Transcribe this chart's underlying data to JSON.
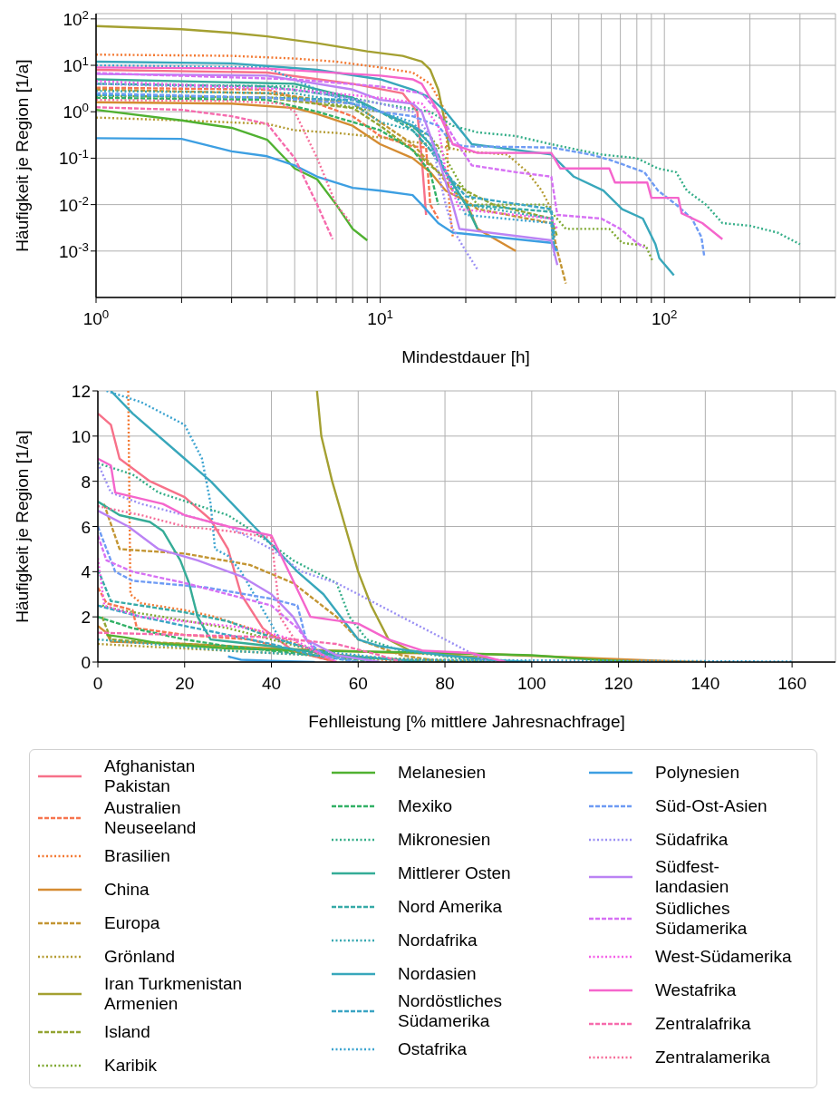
{
  "chart_data": [
    {
      "type": "line",
      "xlabel": "Mindestdauer [h]",
      "ylabel": "Häufigkeit je Region [1/a]",
      "log": "xy",
      "grid": true,
      "legend": false,
      "xlim": [
        1,
        400
      ],
      "ylim": [
        0.0001,
        130
      ],
      "xticks": [
        {
          "value": 1,
          "label": "10$^{0}$"
        },
        {
          "value": 2,
          "label": null
        },
        {
          "value": 3,
          "label": null
        },
        {
          "value": 4,
          "label": null
        },
        {
          "value": 5,
          "label": null
        },
        {
          "value": 6,
          "label": null
        },
        {
          "value": 7,
          "label": null
        },
        {
          "value": 8,
          "label": null
        },
        {
          "value": 9,
          "label": null
        },
        {
          "value": 10,
          "label": "10$^{1}$"
        },
        {
          "value": 20,
          "label": null
        },
        {
          "value": 30,
          "label": null
        },
        {
          "value": 40,
          "label": null
        },
        {
          "value": 50,
          "label": null
        },
        {
          "value": 60,
          "label": null
        },
        {
          "value": 70,
          "label": null
        },
        {
          "value": 80,
          "label": null
        },
        {
          "value": 90,
          "label": null
        },
        {
          "value": 100,
          "label": "10$^{2}$"
        },
        {
          "value": 200,
          "label": null
        },
        {
          "value": 300,
          "label": null
        }
      ],
      "yticks": [
        {
          "value": 0.001,
          "label": "10$^{-3}$"
        },
        {
          "value": 0.01,
          "label": "10$^{-2}$"
        },
        {
          "value": 0.1,
          "label": "10$^{-1}$"
        },
        {
          "value": 1,
          "label": "10$^{0}$"
        },
        {
          "value": 10,
          "label": "10$^{1}$"
        },
        {
          "value": 100,
          "label": "10$^{2}$"
        }
      ],
      "series": [
        {
          "color": "#f77189",
          "line_style": "solid",
          "x": [
            1,
            4,
            8,
            12,
            13.5,
            14,
            14.5
          ],
          "values": [
            8,
            7,
            4,
            2.5,
            1,
            0.1,
            0.006
          ]
        },
        {
          "color": "#f7754f",
          "line_style": "dashed",
          "x": [
            1,
            4,
            6,
            8,
            10,
            13,
            14.5,
            15,
            16
          ],
          "values": [
            3.3,
            3,
            1.5,
            0.8,
            0.3,
            0.18,
            0.17,
            0.01,
            0.005
          ]
        },
        {
          "color": "#f37932",
          "line_style": "dotted",
          "x": [
            1,
            3,
            5,
            7,
            10,
            13,
            15,
            17,
            17.5,
            18
          ],
          "values": [
            17,
            16,
            14,
            12,
            9,
            7,
            4,
            1,
            0.01,
            0.002
          ]
        },
        {
          "color": "#d58c32",
          "line_style": "solid",
          "x": [
            1,
            3,
            5,
            6,
            8,
            10,
            13,
            15,
            17,
            20,
            22,
            30
          ],
          "values": [
            1.6,
            1.5,
            1.2,
            0.9,
            0.5,
            0.2,
            0.1,
            0.05,
            0.02,
            0.012,
            0.003,
            0.001
          ]
        },
        {
          "color": "#c39532",
          "line_style": "dashed",
          "x": [
            1,
            4,
            8,
            10,
            13,
            16,
            18,
            22,
            40,
            42,
            45
          ],
          "values": [
            3,
            2.5,
            1.5,
            0.6,
            0.2,
            0.05,
            0.02,
            0.008,
            0.004,
            0.001,
            0.0002
          ]
        },
        {
          "color": "#b49b32",
          "line_style": "dotted",
          "x": [
            1,
            2,
            4,
            5,
            7,
            10,
            15,
            20,
            28,
            33,
            37,
            40
          ],
          "values": [
            0.75,
            0.65,
            0.55,
            0.4,
            0.35,
            0.28,
            0.2,
            0.14,
            0.12,
            0.05,
            0.02,
            0.008
          ]
        },
        {
          "color": "#a4a031",
          "line_style": "solid",
          "x": [
            1,
            2,
            3,
            4,
            6,
            9,
            12,
            14,
            15,
            16,
            17,
            17.5
          ],
          "values": [
            70,
            60,
            50,
            42,
            30,
            20,
            16,
            12,
            8,
            3,
            0.5,
            0.15
          ]
        },
        {
          "color": "#93a431",
          "line_style": "dashed",
          "x": [
            1,
            4,
            8,
            10,
            13,
            16,
            20,
            25,
            40,
            42
          ],
          "values": [
            2.3,
            2,
            1.2,
            0.5,
            0.15,
            0.05,
            0.02,
            0.01,
            0.005,
            0.002
          ]
        },
        {
          "color": "#7fa831",
          "line_style": "dotted",
          "x": [
            1,
            5,
            10,
            15,
            17,
            19,
            22,
            38,
            45,
            64,
            71,
            86,
            91
          ],
          "values": [
            2.2,
            2,
            1,
            0.3,
            0.1,
            0.03,
            0.01,
            0.01,
            0.003,
            0.003,
            0.0015,
            0.0013,
            0.0006
          ]
        },
        {
          "color": "#50b131",
          "line_style": "solid",
          "x": [
            1,
            2,
            3,
            4,
            5,
            6,
            7,
            8,
            9
          ],
          "values": [
            1.1,
            0.65,
            0.45,
            0.25,
            0.06,
            0.035,
            0.01,
            0.003,
            0.0017
          ]
        },
        {
          "color": "#32b166",
          "line_style": "dashed",
          "x": [
            1,
            4,
            6,
            8,
            10,
            13,
            15,
            16
          ],
          "values": [
            2,
            1.8,
            1,
            0.6,
            0.4,
            0.15,
            0.05,
            0.01
          ]
        },
        {
          "color": "#34ae88",
          "line_style": "dotted",
          "x": [
            1,
            5,
            10,
            15,
            18,
            22,
            30,
            40,
            50,
            60,
            80,
            95,
            110,
            120,
            140,
            160,
            200,
            250,
            300
          ],
          "values": [
            4,
            3.5,
            1.5,
            1,
            0.5,
            0.36,
            0.3,
            0.2,
            0.15,
            0.12,
            0.1,
            0.06,
            0.05,
            0.02,
            0.01,
            0.004,
            0.0035,
            0.0025,
            0.0014
          ]
        },
        {
          "color": "#35ac97",
          "line_style": "solid",
          "x": [
            1,
            5,
            8,
            10,
            13,
            15,
            17,
            20,
            22
          ],
          "values": [
            5,
            4,
            2,
            1,
            0.5,
            0.2,
            0.05,
            0.01,
            0.003
          ]
        },
        {
          "color": "#36aaa7",
          "line_style": "dashed",
          "x": [
            1,
            4,
            8,
            10,
            13,
            15,
            17,
            20,
            40,
            41
          ],
          "values": [
            4,
            3.5,
            2,
            1,
            0.4,
            0.15,
            0.05,
            0.01,
            0.007,
            0.001
          ]
        },
        {
          "color": "#37a8b1",
          "line_style": "dotted",
          "x": [
            1,
            5,
            8,
            10,
            13,
            16,
            20,
            40,
            41
          ],
          "values": [
            2.8,
            2.5,
            1.5,
            0.6,
            0.4,
            0.1,
            0.01,
            0.005,
            0.0008
          ]
        },
        {
          "color": "#38a7bb",
          "line_style": "solid",
          "x": [
            1,
            3,
            6,
            10,
            13,
            15,
            17,
            21,
            40,
            48,
            61,
            71,
            84,
            93,
            96,
            108
          ],
          "values": [
            12,
            11,
            8,
            5,
            3,
            2,
            1,
            0.2,
            0.12,
            0.04,
            0.02,
            0.008,
            0.005,
            0.0014,
            0.0007,
            0.0003
          ]
        },
        {
          "color": "#3aa5c4",
          "line_style": "dashed",
          "x": [
            1,
            4,
            8,
            10,
            13,
            15,
            17,
            20,
            40,
            41
          ],
          "values": [
            2.3,
            2,
            1.8,
            1,
            0.5,
            0.3,
            0.05,
            0.015,
            0.008,
            0.002
          ]
        },
        {
          "color": "#3ba3d0",
          "line_style": "dotted",
          "x": [
            1,
            4,
            6,
            8,
            10,
            13,
            15,
            17,
            20,
            40,
            41
          ],
          "values": [
            10,
            9,
            3,
            1.5,
            1,
            0.6,
            0.2,
            0.05,
            0.006,
            0.004,
            0.001
          ]
        },
        {
          "color": "#3d9fe2",
          "line_style": "solid",
          "x": [
            1,
            2,
            3,
            4,
            5,
            6,
            8,
            10,
            13,
            14,
            16,
            18,
            40,
            42
          ],
          "values": [
            0.27,
            0.26,
            0.14,
            0.11,
            0.07,
            0.04,
            0.023,
            0.02,
            0.016,
            0.01,
            0.004,
            0.0025,
            0.0015,
            0.001
          ]
        },
        {
          "color": "#6e9bf4",
          "line_style": "dashed",
          "x": [
            1,
            4,
            8,
            10,
            13,
            16,
            18,
            20,
            40,
            55,
            65,
            85,
            95,
            110,
            125,
            135,
            138
          ],
          "values": [
            2.5,
            2,
            1.5,
            1,
            0.8,
            0.5,
            0.2,
            0.18,
            0.17,
            0.12,
            0.09,
            0.05,
            0.02,
            0.01,
            0.005,
            0.002,
            0.0008
          ]
        },
        {
          "color": "#9b90f4",
          "line_style": "dotted",
          "x": [
            1,
            5,
            10,
            13,
            15,
            17,
            18,
            20,
            22
          ],
          "values": [
            4,
            3,
            1.5,
            1,
            0.3,
            0.01,
            0.003,
            0.001,
            0.0004
          ]
        },
        {
          "color": "#bb83f4",
          "line_style": "solid",
          "x": [
            1,
            4,
            8,
            10,
            13,
            14,
            16,
            18,
            19,
            40,
            42
          ],
          "values": [
            6.5,
            6,
            3,
            1.8,
            1.5,
            1,
            0.1,
            0.01,
            0.003,
            0.0017,
            0.0005
          ]
        },
        {
          "color": "#d670f4",
          "line_style": "dashed",
          "x": [
            1,
            5,
            10,
            14,
            16,
            18,
            21,
            30,
            40,
            42,
            60,
            70,
            80,
            85
          ],
          "values": [
            6.8,
            5,
            3.5,
            2.5,
            1,
            0.3,
            0.07,
            0.05,
            0.04,
            0.006,
            0.005,
            0.003,
            0.0015,
            0.0012
          ]
        },
        {
          "color": "#f45fe8",
          "line_style": "dotted",
          "x": [
            1,
            5,
            10,
            14,
            16,
            17,
            19,
            30,
            40,
            42
          ],
          "values": [
            4.6,
            3,
            2,
            1.5,
            0.5,
            0.05,
            0.008,
            0.006,
            0.005,
            0.003
          ]
        },
        {
          "color": "#f565cc",
          "line_style": "solid",
          "x": [
            1,
            4,
            10,
            13,
            14,
            16,
            18,
            22,
            40,
            43,
            64,
            67,
            87,
            90,
            112,
            115,
            136,
            160
          ],
          "values": [
            9,
            8.5,
            6,
            5,
            4,
            1,
            0.2,
            0.13,
            0.13,
            0.06,
            0.06,
            0.03,
            0.03,
            0.014,
            0.014,
            0.0065,
            0.004,
            0.0018
          ]
        },
        {
          "color": "#f66bad",
          "line_style": "dashed",
          "x": [
            1,
            2,
            3,
            4,
            5,
            6,
            6.8
          ],
          "values": [
            1.25,
            1.1,
            0.8,
            0.55,
            0.1,
            0.01,
            0.0018
          ]
        },
        {
          "color": "#f66f9a",
          "line_style": "dotted",
          "x": [
            1,
            3,
            4.5,
            5,
            6,
            7,
            7.9
          ],
          "values": [
            1.8,
            1.7,
            1.5,
            1,
            0.1,
            0.01,
            0.004
          ]
        }
      ]
    },
    {
      "type": "line",
      "xlabel": "Fehlleistung [% mittlere Jahresnachfrage]",
      "ylabel": "Häufigkeit je Region [1/a]",
      "grid": true,
      "legend": "bottom",
      "xlim": [
        0,
        170
      ],
      "ylim": [
        0,
        12
      ],
      "xticks": [
        0,
        20,
        40,
        60,
        80,
        100,
        120,
        140,
        160
      ],
      "yticks": [
        0,
        2,
        4,
        6,
        8,
        10,
        12
      ],
      "series": [
        {
          "name": "Afghanistan\nPakistan",
          "color": "#f77189",
          "line_style": "solid",
          "x": [
            0,
            3,
            5,
            12,
            20,
            26,
            30,
            33,
            38,
            45,
            55
          ],
          "values": [
            11,
            10.5,
            9,
            8,
            7.3,
            6.3,
            5,
            3,
            1.5,
            0.5,
            0
          ]
        },
        {
          "name": "Australien\nNeuseeland",
          "color": "#f7754f",
          "line_style": "dashed",
          "x": [
            0,
            2,
            8,
            9,
            20,
            35,
            45,
            55
          ],
          "values": [
            3.3,
            2.6,
            2.3,
            1.5,
            1.2,
            1,
            0.5,
            0
          ]
        },
        {
          "name": "Brasilien",
          "color": "#f37932",
          "line_style": "dotted",
          "x": [
            7,
            7.5,
            10,
            20,
            27,
            35,
            43,
            50,
            60,
            70
          ],
          "values": [
            12,
            3,
            2.6,
            2.3,
            2,
            1.5,
            1,
            0.5,
            0.2,
            0
          ]
        },
        {
          "name": "China",
          "color": "#d58c32",
          "line_style": "solid",
          "x": [
            0,
            2,
            3,
            20,
            40,
            70,
            90,
            110,
            130,
            140
          ],
          "values": [
            1.6,
            1.3,
            0.9,
            0.8,
            0.6,
            0.4,
            0.35,
            0.2,
            0.05,
            0
          ]
        },
        {
          "name": "Europa",
          "color": "#c39532",
          "line_style": "dashed",
          "x": [
            1.4,
            5,
            20,
            35,
            45,
            55,
            60,
            70,
            80
          ],
          "values": [
            7,
            5,
            4.8,
            4.3,
            3.5,
            2,
            1,
            0.3,
            0
          ]
        },
        {
          "name": "Grönland",
          "color": "#b49b32",
          "line_style": "dotted",
          "x": [
            0,
            20,
            40,
            60,
            80,
            100
          ],
          "values": [
            0.8,
            0.6,
            0.4,
            0.2,
            0.1,
            0
          ]
        },
        {
          "name": "Iran Turkmenistan\nArmenien",
          "color": "#a4a031",
          "line_style": "solid",
          "x": [
            50.5,
            51.5,
            54,
            57,
            60,
            63,
            67,
            72,
            80,
            90
          ],
          "values": [
            12,
            10,
            8,
            6,
            4,
            2.5,
            1,
            0.5,
            0.3,
            0.2
          ]
        },
        {
          "name": "Island",
          "color": "#93a431",
          "line_style": "dashed",
          "x": [
            1,
            3,
            10,
            30,
            50,
            70,
            90
          ],
          "values": [
            2,
            1,
            0.9,
            0.7,
            0.4,
            0.1,
            0
          ]
        },
        {
          "name": "Karibik",
          "color": "#7fa831",
          "line_style": "dotted",
          "x": [
            1,
            5,
            15,
            30,
            40,
            50,
            60
          ],
          "values": [
            2.5,
            2.3,
            2,
            1.5,
            1,
            0.5,
            0
          ]
        },
        {
          "name": "Melanesien",
          "color": "#50b131",
          "line_style": "solid",
          "x": [
            2,
            6,
            15,
            30,
            50,
            80,
            100,
            115,
            125
          ],
          "values": [
            1.2,
            1.1,
            0.8,
            0.6,
            0.5,
            0.4,
            0.3,
            0.1,
            0
          ]
        },
        {
          "name": "Mexiko",
          "color": "#32b166",
          "line_style": "dashed",
          "x": [
            0,
            8,
            20,
            30,
            45,
            55,
            65
          ],
          "values": [
            2,
            1.5,
            1,
            0.7,
            0.4,
            0.2,
            0
          ]
        },
        {
          "name": "Mikronesien",
          "color": "#34ae88",
          "line_style": "dotted",
          "x": [
            0,
            8,
            14,
            22,
            30,
            38,
            45,
            55,
            58,
            62,
            70,
            90
          ],
          "values": [
            8.8,
            8.3,
            7.5,
            7,
            6.5,
            5.5,
            4.5,
            3.5,
            2,
            1,
            0.5,
            0
          ]
        },
        {
          "name": "Mittlerer Osten",
          "color": "#35ac97",
          "line_style": "solid",
          "x": [
            0,
            5,
            12,
            15,
            19,
            21,
            23,
            26,
            40,
            55,
            75
          ],
          "values": [
            7.1,
            6.5,
            6.2,
            5.8,
            4.5,
            3.5,
            2,
            1,
            0.7,
            0.3,
            0
          ]
        },
        {
          "name": "Nord Amerika",
          "color": "#36aaa7",
          "line_style": "dashed",
          "x": [
            0,
            3,
            10,
            20,
            30,
            37,
            45,
            55,
            65
          ],
          "values": [
            4.1,
            2.7,
            2.5,
            2.2,
            1.8,
            1.3,
            0.8,
            0.3,
            0
          ]
        },
        {
          "name": "Nordafrika",
          "color": "#37a8b1",
          "line_style": "dotted",
          "x": [
            0,
            30,
            60,
            90
          ],
          "values": [
            1,
            0.5,
            0.2,
            0
          ]
        },
        {
          "name": "Nordasien",
          "color": "#38a7bb",
          "line_style": "solid",
          "x": [
            3,
            8,
            20,
            26,
            31,
            36,
            41,
            46,
            52,
            56,
            60,
            65,
            72,
            80,
            90,
            100
          ],
          "values": [
            12,
            11,
            9,
            8,
            7,
            6,
            5,
            4,
            3,
            2,
            1,
            0.7,
            0.5,
            0.3,
            0.1,
            0
          ]
        },
        {
          "name": "Nordöstliches\nSüdamerika",
          "color": "#3aa5c4",
          "line_style": "dashed",
          "x": [
            0,
            10,
            20,
            30,
            40,
            50,
            60
          ],
          "values": [
            2.5,
            2,
            1.6,
            1.2,
            0.8,
            0.3,
            0
          ]
        },
        {
          "name": "Ostafrika",
          "color": "#3ba3d0",
          "line_style": "dotted",
          "x": [
            2,
            10,
            20,
            24,
            26,
            27,
            30,
            33,
            36,
            39,
            42,
            50,
            70,
            160
          ],
          "values": [
            12,
            11.5,
            10.5,
            9,
            7,
            5,
            4.7,
            4,
            3,
            2,
            1,
            0.5,
            0.1,
            0.02
          ]
        },
        {
          "name": "Polynesien",
          "color": "#3d9fe2",
          "line_style": "solid",
          "x": [
            30,
            33,
            40,
            50
          ],
          "values": [
            0.25,
            0.1,
            0.05,
            0
          ]
        },
        {
          "name": "Süd-Ost-Asien",
          "color": "#6e9bf4",
          "line_style": "dashed",
          "x": [
            0,
            4,
            8,
            25,
            40,
            46,
            48,
            52,
            60
          ],
          "values": [
            6,
            4,
            3.6,
            3.3,
            2.8,
            2.5,
            1,
            0.3,
            0
          ]
        },
        {
          "name": "Südafrika",
          "color": "#9b90f4",
          "line_style": "dotted",
          "x": [
            0,
            3,
            10,
            20,
            30,
            40,
            47,
            55,
            62,
            75,
            85,
            90
          ],
          "values": [
            8.8,
            7.5,
            7,
            6.5,
            6,
            5,
            4,
            3.5,
            2.8,
            1.5,
            0.5,
            0
          ]
        },
        {
          "name": "Südfest-\nlandasien",
          "color": "#bb83f4",
          "line_style": "solid",
          "x": [
            0,
            7,
            14,
            23,
            33,
            40,
            45,
            48,
            55,
            65
          ],
          "values": [
            6.7,
            6,
            5,
            4.5,
            3.8,
            3,
            2,
            1,
            0.3,
            0
          ]
        },
        {
          "name": "Südliches\nSüdamerika",
          "color": "#d670f4",
          "line_style": "dashed",
          "x": [
            0,
            2,
            8,
            20,
            30,
            40,
            46,
            50,
            55
          ],
          "values": [
            5.6,
            4.5,
            4,
            3.5,
            3,
            2.5,
            1.5,
            0.5,
            0
          ]
        },
        {
          "name": "West-Südamerika",
          "color": "#f45fe8",
          "line_style": "dotted",
          "x": [
            0,
            1.5,
            10,
            20,
            35,
            45,
            50,
            55
          ],
          "values": [
            4.6,
            2.5,
            2,
            1.8,
            1.5,
            1,
            0.5,
            0
          ]
        },
        {
          "name": "Westafrika",
          "color": "#f565cc",
          "line_style": "solid",
          "x": [
            0,
            3,
            4,
            15,
            20,
            30,
            40,
            44,
            49,
            60,
            67,
            75,
            86,
            94
          ],
          "values": [
            9,
            8.7,
            7.5,
            7,
            6.5,
            6,
            5.6,
            4,
            2,
            1.7,
            1,
            0.5,
            0.4,
            0
          ]
        },
        {
          "name": "Zentralafrika",
          "color": "#f66bad",
          "line_style": "dashed",
          "x": [
            0,
            20,
            40,
            55,
            65,
            70
          ],
          "values": [
            1.3,
            1.2,
            1.1,
            0.8,
            0.3,
            0
          ]
        },
        {
          "name": "Zentralamerika",
          "color": "#f66f9a",
          "line_style": "dotted",
          "x": [
            0,
            10,
            20,
            30,
            40,
            42,
            46,
            55
          ],
          "values": [
            6.9,
            6.5,
            6,
            5.8,
            5.5,
            2,
            0.8,
            0
          ]
        }
      ]
    }
  ]
}
